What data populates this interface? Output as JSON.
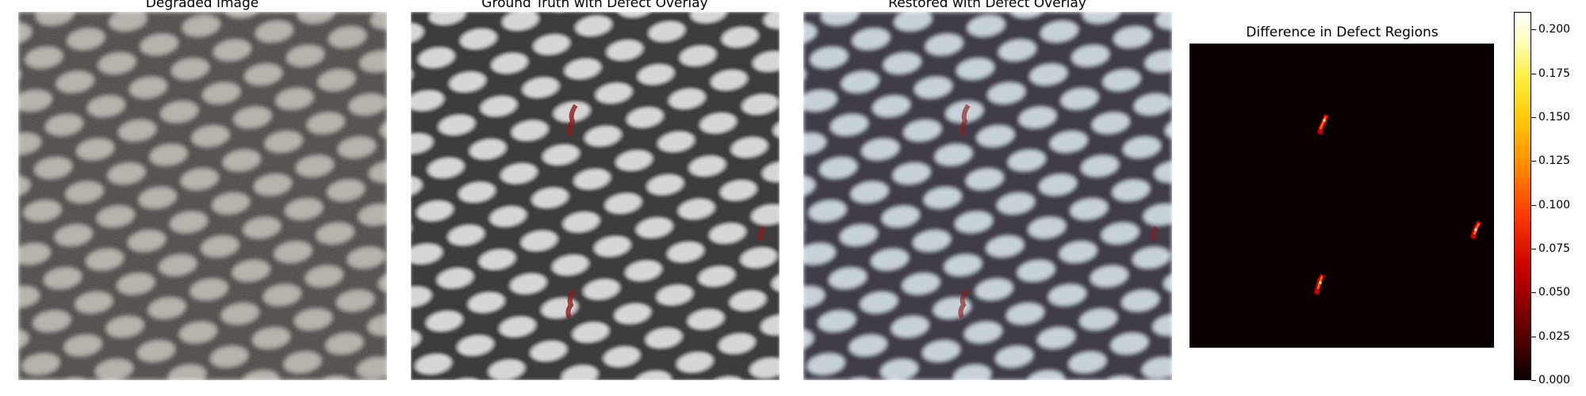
{
  "panels": [
    {
      "title": "Degraded Image"
    },
    {
      "title": "Ground Truth with Defect Overlay"
    },
    {
      "title": "Restored with Defect Overlay"
    },
    {
      "title": "Difference in Defect Regions"
    }
  ],
  "colorbar": {
    "colormap": "hot",
    "range": [
      0.0,
      0.21
    ],
    "ticks": [
      "0.000",
      "0.025",
      "0.050",
      "0.075",
      "0.100",
      "0.125",
      "0.150",
      "0.175",
      "0.200"
    ]
  },
  "colors": {
    "defect_overlay": "#8b1a1a",
    "degraded_cell": "#b9b3ad",
    "gt_cell": "#d4d4d4",
    "restored_cell": "#c9d4da"
  }
}
